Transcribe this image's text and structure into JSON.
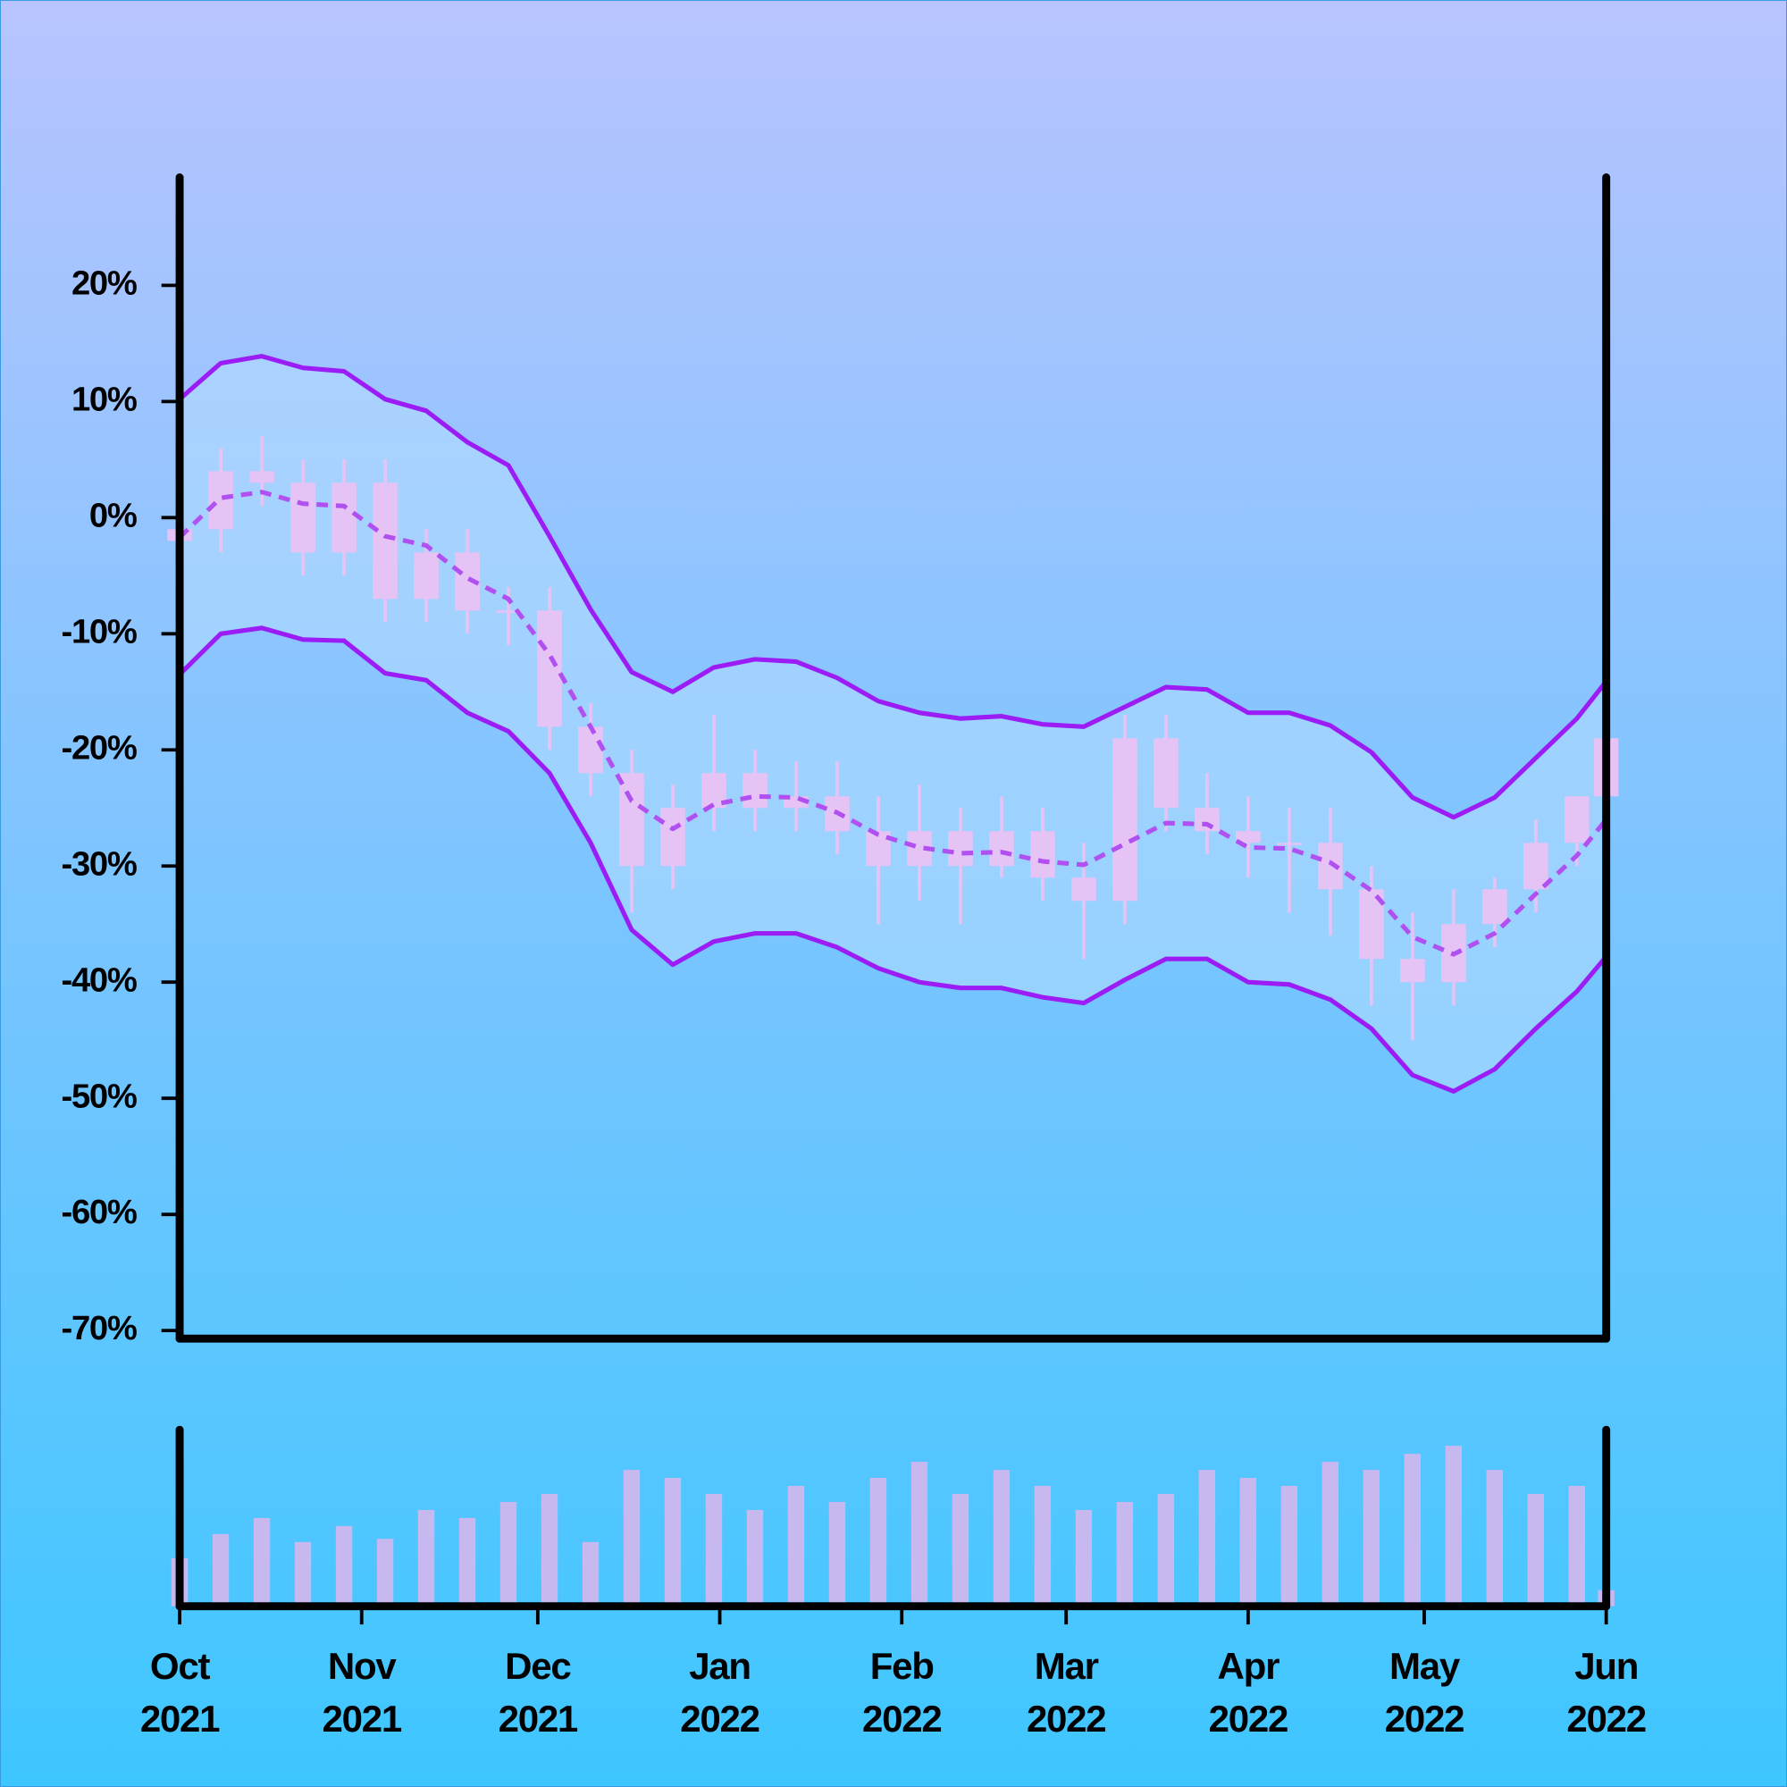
{
  "chart_data": {
    "type": "candlestick",
    "x": [
      "2021-10-01",
      "2021-10-08",
      "2021-10-15",
      "2021-10-22",
      "2021-10-29",
      "2021-11-05",
      "2021-11-12",
      "2021-11-19",
      "2021-11-26",
      "2021-12-03",
      "2021-12-10",
      "2021-12-17",
      "2021-12-24",
      "2021-12-31",
      "2022-01-07",
      "2022-01-14",
      "2022-01-21",
      "2022-01-28",
      "2022-02-04",
      "2022-02-11",
      "2022-02-18",
      "2022-02-25",
      "2022-03-04",
      "2022-03-11",
      "2022-03-18",
      "2022-03-25",
      "2022-04-01",
      "2022-04-08",
      "2022-04-15",
      "2022-04-22",
      "2022-04-29",
      "2022-05-06",
      "2022-05-13",
      "2022-05-20",
      "2022-05-27",
      "2022-06-01"
    ],
    "open": [
      -2,
      -1,
      4,
      3,
      -3,
      3,
      -7,
      -3,
      -8,
      -8,
      -18,
      -22,
      -30,
      -25,
      -22,
      -25,
      -24,
      -27,
      -30,
      -27,
      -30,
      -27,
      -31,
      -33,
      -19,
      -25,
      -27,
      -28,
      -28,
      -32,
      -38,
      -40,
      -35,
      -32,
      -28,
      -24
    ],
    "close": [
      -1,
      4,
      3,
      -3,
      3,
      -7,
      -3,
      -8,
      -8,
      -18,
      -22,
      -30,
      -25,
      -22,
      -25,
      -24,
      -27,
      -30,
      -27,
      -30,
      -27,
      -31,
      -33,
      -19,
      -25,
      -27,
      -28,
      -28,
      -32,
      -38,
      -40,
      -35,
      -32,
      -28,
      -24,
      -19
    ],
    "high": [
      1,
      6,
      7,
      5,
      5,
      5,
      -1,
      -1,
      -6,
      -6,
      -16,
      -20,
      -23,
      -17,
      -20,
      -21,
      -21,
      -24,
      -23,
      -25,
      -24,
      -25,
      -28,
      -17,
      -17,
      -22,
      -24,
      -25,
      -25,
      -30,
      -34,
      -32,
      -31,
      -26,
      -24,
      -17
    ],
    "low": [
      -4,
      -3,
      1,
      -5,
      -5,
      -9,
      -9,
      -10,
      -11,
      -20,
      -24,
      -34,
      -32,
      -27,
      -27,
      -27,
      -29,
      -35,
      -33,
      -35,
      -31,
      -33,
      -38,
      -35,
      -27,
      -29,
      -31,
      -34,
      -36,
      -42,
      -45,
      -42,
      -37,
      -34,
      -30,
      -26
    ],
    "volume": [
      30,
      45,
      55,
      40,
      50,
      42,
      60,
      55,
      65,
      70,
      40,
      85,
      80,
      70,
      60,
      75,
      65,
      80,
      90,
      70,
      85,
      75,
      60,
      65,
      70,
      85,
      80,
      75,
      90,
      85,
      95,
      100,
      85,
      70,
      75,
      10
    ],
    "bands": {
      "color": "#9b1cf5",
      "middle_color": "#b050f0",
      "fill": "#b4dcff",
      "upper": [
        10.2,
        13.3,
        13.9,
        12.9,
        12.6,
        10.2,
        9.2,
        6.5,
        4.5,
        -1.6,
        -7.9,
        -13.3,
        -15,
        -12.9,
        -12.2,
        -12.4,
        -13.8,
        -15.8,
        -16.8,
        -17.3,
        -17.1,
        -17.8,
        -18,
        -16.3,
        -14.6,
        -14.8,
        -16.8,
        -16.8,
        -17.9,
        -20.2,
        -24.1,
        -25.8,
        -24.1,
        -20.7,
        -17.3,
        -14.1
      ],
      "middle": [
        -1.7,
        1.7,
        2.2,
        1.2,
        1.0,
        -1.6,
        -2.4,
        -5.2,
        -7.0,
        -11.8,
        -18,
        -24.4,
        -26.8,
        -24.7,
        -24,
        -24.1,
        -25.4,
        -27.3,
        -28.4,
        -28.9,
        -28.8,
        -29.6,
        -29.9,
        -28.1,
        -26.3,
        -26.4,
        -28.4,
        -28.5,
        -29.7,
        -32.1,
        -36.1,
        -37.6,
        -35.8,
        -32.4,
        -29.1,
        -26
      ],
      "lower": [
        -13.5,
        -10,
        -9.5,
        -10.5,
        -10.6,
        -13.4,
        -14,
        -16.8,
        -18.4,
        -22,
        -28,
        -35.5,
        -38.5,
        -36.5,
        -35.8,
        -35.8,
        -37,
        -38.8,
        -40,
        -40.5,
        -40.5,
        -41.3,
        -41.8,
        -39.8,
        -38,
        -38,
        -40,
        -40.2,
        -41.5,
        -44,
        -48,
        -49.4,
        -47.5,
        -44,
        -40.8,
        -37.8
      ]
    },
    "candle_color": "#e6c3f5",
    "volume_color": "#c8b8f0",
    "ylim": [
      -70.7,
      29.3
    ],
    "yticks": [
      {
        "value": 20,
        "label": "20%"
      },
      {
        "value": 10,
        "label": "10%"
      },
      {
        "value": 0,
        "label": "0%"
      },
      {
        "value": -10,
        "label": "-10%"
      },
      {
        "value": -20,
        "label": "-20%"
      },
      {
        "value": -30,
        "label": "-30%"
      },
      {
        "value": -40,
        "label": "-40%"
      },
      {
        "value": -50,
        "label": "-50%"
      },
      {
        "value": -60,
        "label": "-60%"
      },
      {
        "value": -70,
        "label": "-70%"
      }
    ],
    "xlim": [
      "2021-10-01",
      "2022-06-01"
    ],
    "xticks": [
      {
        "value": "2021-10-01",
        "label": "Oct 2021"
      },
      {
        "value": "2021-11-01",
        "label": "Nov 2021"
      },
      {
        "value": "2021-12-01",
        "label": "Dec 2021"
      },
      {
        "value": "2022-01-01",
        "label": "Jan 2022"
      },
      {
        "value": "2022-02-01",
        "label": "Feb 2022"
      },
      {
        "value": "2022-03-01",
        "label": "Mar 2022"
      },
      {
        "value": "2022-04-01",
        "label": "Apr 2022"
      },
      {
        "value": "2022-05-01",
        "label": "May 2022"
      },
      {
        "value": "2022-06-01",
        "label": "Jun 2022"
      }
    ],
    "vlim": [
      0,
      110
    ]
  }
}
